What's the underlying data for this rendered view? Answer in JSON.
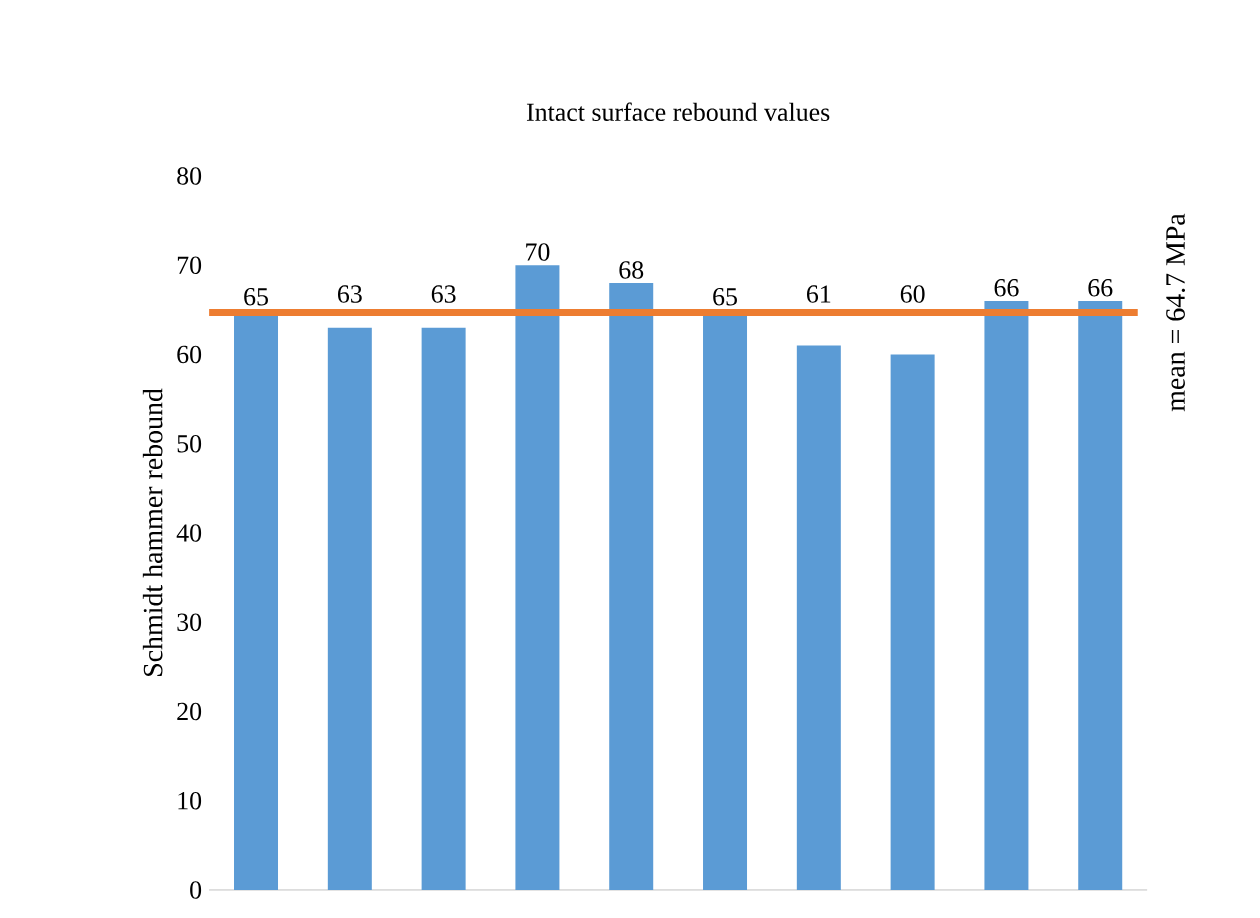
{
  "chart_data": {
    "type": "bar",
    "title": "Intact surface rebound values",
    "ylabel": "Schmidt hammer rebound",
    "categories": [
      null,
      null,
      null,
      null,
      null,
      null,
      null,
      null,
      null,
      null
    ],
    "values": [
      65,
      63,
      63,
      70,
      68,
      65,
      61,
      60,
      66,
      66
    ],
    "color": "#5b9bd5",
    "ylim": [
      0,
      80
    ],
    "yticks": [
      0,
      10,
      20,
      30,
      40,
      50,
      60,
      70,
      80
    ],
    "data_labels": true,
    "ref_lines": [
      {
        "axis": "y",
        "value": 64.7,
        "label": "mean = 64.7 MPa",
        "color": "#ed7d31"
      }
    ]
  }
}
